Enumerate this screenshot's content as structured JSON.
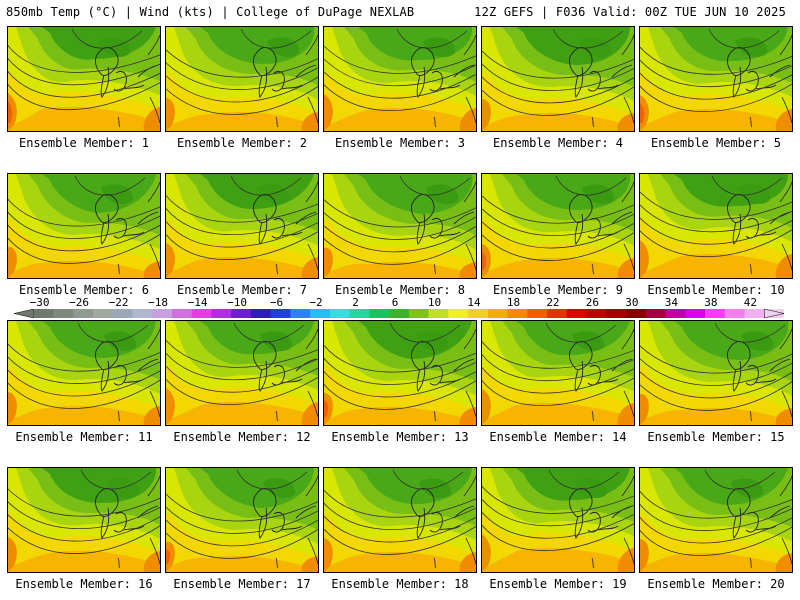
{
  "header": {
    "left": "850mb Temp (°C) | Wind (kts) | College of DuPage NEXLAB",
    "right": "12Z GEFS | F036 Valid: 00Z TUE JUN 10 2025"
  },
  "panels": [
    {
      "caption": "Ensemble Member: 1"
    },
    {
      "caption": "Ensemble Member: 2"
    },
    {
      "caption": "Ensemble Member: 3"
    },
    {
      "caption": "Ensemble Member: 4"
    },
    {
      "caption": "Ensemble Member: 5"
    },
    {
      "caption": "Ensemble Member: 6"
    },
    {
      "caption": "Ensemble Member: 7"
    },
    {
      "caption": "Ensemble Member: 8"
    },
    {
      "caption": "Ensemble Member: 9"
    },
    {
      "caption": "Ensemble Member: 10"
    },
    {
      "caption": "Ensemble Member: 11"
    },
    {
      "caption": "Ensemble Member: 12"
    },
    {
      "caption": "Ensemble Member: 13"
    },
    {
      "caption": "Ensemble Member: 14"
    },
    {
      "caption": "Ensemble Member: 15"
    },
    {
      "caption": "Ensemble Member: 16"
    },
    {
      "caption": "Ensemble Member: 17"
    },
    {
      "caption": "Ensemble Member: 18"
    },
    {
      "caption": "Ensemble Member: 19"
    },
    {
      "caption": "Ensemble Member: 20"
    }
  ],
  "colorbar": {
    "labels": [
      "−30",
      "−26",
      "−22",
      "−18",
      "−14",
      "−10",
      "−6",
      "−2",
      "2",
      "6",
      "10",
      "14",
      "18",
      "22",
      "26",
      "30",
      "34",
      "38",
      "42"
    ],
    "colors": [
      "#6e7a6e",
      "#7f8a7f",
      "#909a90",
      "#a0a8a0",
      "#9aa8b8",
      "#b0b8d0",
      "#c8a0e0",
      "#d070e0",
      "#e040e0",
      "#b030d8",
      "#7020c8",
      "#3020b0",
      "#2040d8",
      "#3080f0",
      "#20c0f0",
      "#30e0e0",
      "#20d8a0",
      "#20c060",
      "#40b030",
      "#80c020",
      "#c0e020",
      "#f0f020",
      "#f0d020",
      "#f0b000",
      "#f08c00",
      "#f06000",
      "#e83000",
      "#e00000",
      "#c00000",
      "#a00000",
      "#800000",
      "#a00040",
      "#c000a0",
      "#e000e0",
      "#f040f0",
      "#f080f0",
      "#f0b0f0",
      "#f0d0f0"
    ]
  }
}
